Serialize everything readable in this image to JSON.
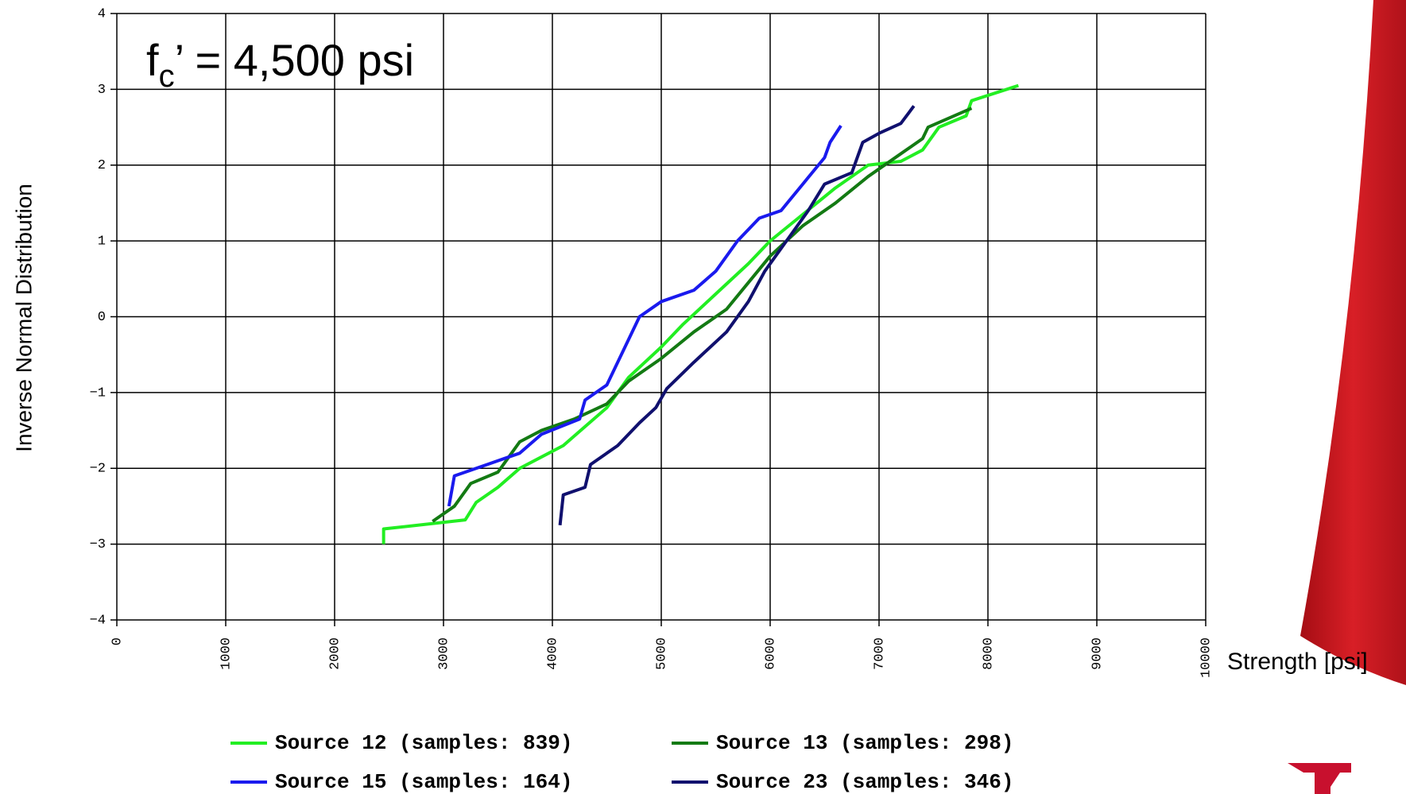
{
  "chart_data": {
    "type": "line",
    "annotation": {
      "main": "f",
      "sub": "c",
      "rest": "’ =  4,500 psi"
    },
    "xlabel": "Strength [psi]",
    "ylabel": "Inverse Normal Distribution",
    "xlim": [
      0,
      10000
    ],
    "xticks": [
      0,
      1000,
      2000,
      3000,
      4000,
      5000,
      6000,
      7000,
      8000,
      9000,
      10000
    ],
    "ylim": [
      -4,
      4
    ],
    "yticks": [
      {
        "value": -4,
        "label": "−4"
      },
      {
        "value": -3,
        "label": "−3"
      },
      {
        "value": -2,
        "label": "−2"
      },
      {
        "value": -1,
        "label": "−1"
      },
      0,
      1,
      2,
      3,
      4
    ],
    "grid": true,
    "legend": "bottom",
    "series": [
      {
        "name": "Source 12 (samples: 839)",
        "color": "#22ee22",
        "x": [
          2450,
          2450,
          3200,
          3300,
          3500,
          3700,
          3900,
          4100,
          4300,
          4500,
          4700,
          5000,
          5200,
          5500,
          5800,
          6000,
          6300,
          6600,
          6900,
          7200,
          7400,
          7550,
          7800,
          7850,
          8280
        ],
        "values": [
          -3.0,
          -2.8,
          -2.68,
          -2.45,
          -2.25,
          -2.0,
          -1.85,
          -1.7,
          -1.45,
          -1.2,
          -0.8,
          -0.4,
          -0.1,
          0.3,
          0.7,
          1.0,
          1.35,
          1.7,
          2.0,
          2.05,
          2.2,
          2.5,
          2.65,
          2.85,
          3.05
        ]
      },
      {
        "name": "Source 13 (samples: 298)",
        "color": "#137a13",
        "x": [
          2900,
          3100,
          3250,
          3500,
          3700,
          3900,
          4200,
          4500,
          4700,
          5000,
          5300,
          5600,
          5800,
          6000,
          6300,
          6600,
          6900,
          7200,
          7400,
          7450,
          7850
        ],
        "values": [
          -2.7,
          -2.5,
          -2.2,
          -2.05,
          -1.65,
          -1.5,
          -1.35,
          -1.15,
          -0.85,
          -0.55,
          -0.2,
          0.1,
          0.45,
          0.8,
          1.2,
          1.5,
          1.85,
          2.15,
          2.35,
          2.5,
          2.75
        ]
      },
      {
        "name": "Source 15 (samples: 164)",
        "color": "#1a1aee",
        "x": [
          3050,
          3100,
          3400,
          3700,
          3900,
          4250,
          4300,
          4500,
          4600,
          4700,
          4800,
          5000,
          5300,
          5500,
          5700,
          5900,
          6100,
          6300,
          6500,
          6550,
          6650
        ],
        "values": [
          -2.5,
          -2.1,
          -1.95,
          -1.8,
          -1.55,
          -1.35,
          -1.1,
          -0.9,
          -0.6,
          -0.3,
          0.0,
          0.2,
          0.35,
          0.6,
          1.0,
          1.3,
          1.4,
          1.75,
          2.1,
          2.3,
          2.52
        ]
      },
      {
        "name": "Source 23 (samples: 346)",
        "color": "#10106e",
        "x": [
          4070,
          4100,
          4300,
          4350,
          4600,
          4800,
          4950,
          5050,
          5300,
          5600,
          5800,
          5950,
          6150,
          6350,
          6500,
          6750,
          6850,
          7000,
          7200,
          7320
        ],
        "values": [
          -2.75,
          -2.35,
          -2.25,
          -1.95,
          -1.7,
          -1.4,
          -1.2,
          -0.95,
          -0.6,
          -0.2,
          0.2,
          0.6,
          1.0,
          1.4,
          1.75,
          1.9,
          2.3,
          2.42,
          2.55,
          2.78
        ]
      }
    ]
  }
}
